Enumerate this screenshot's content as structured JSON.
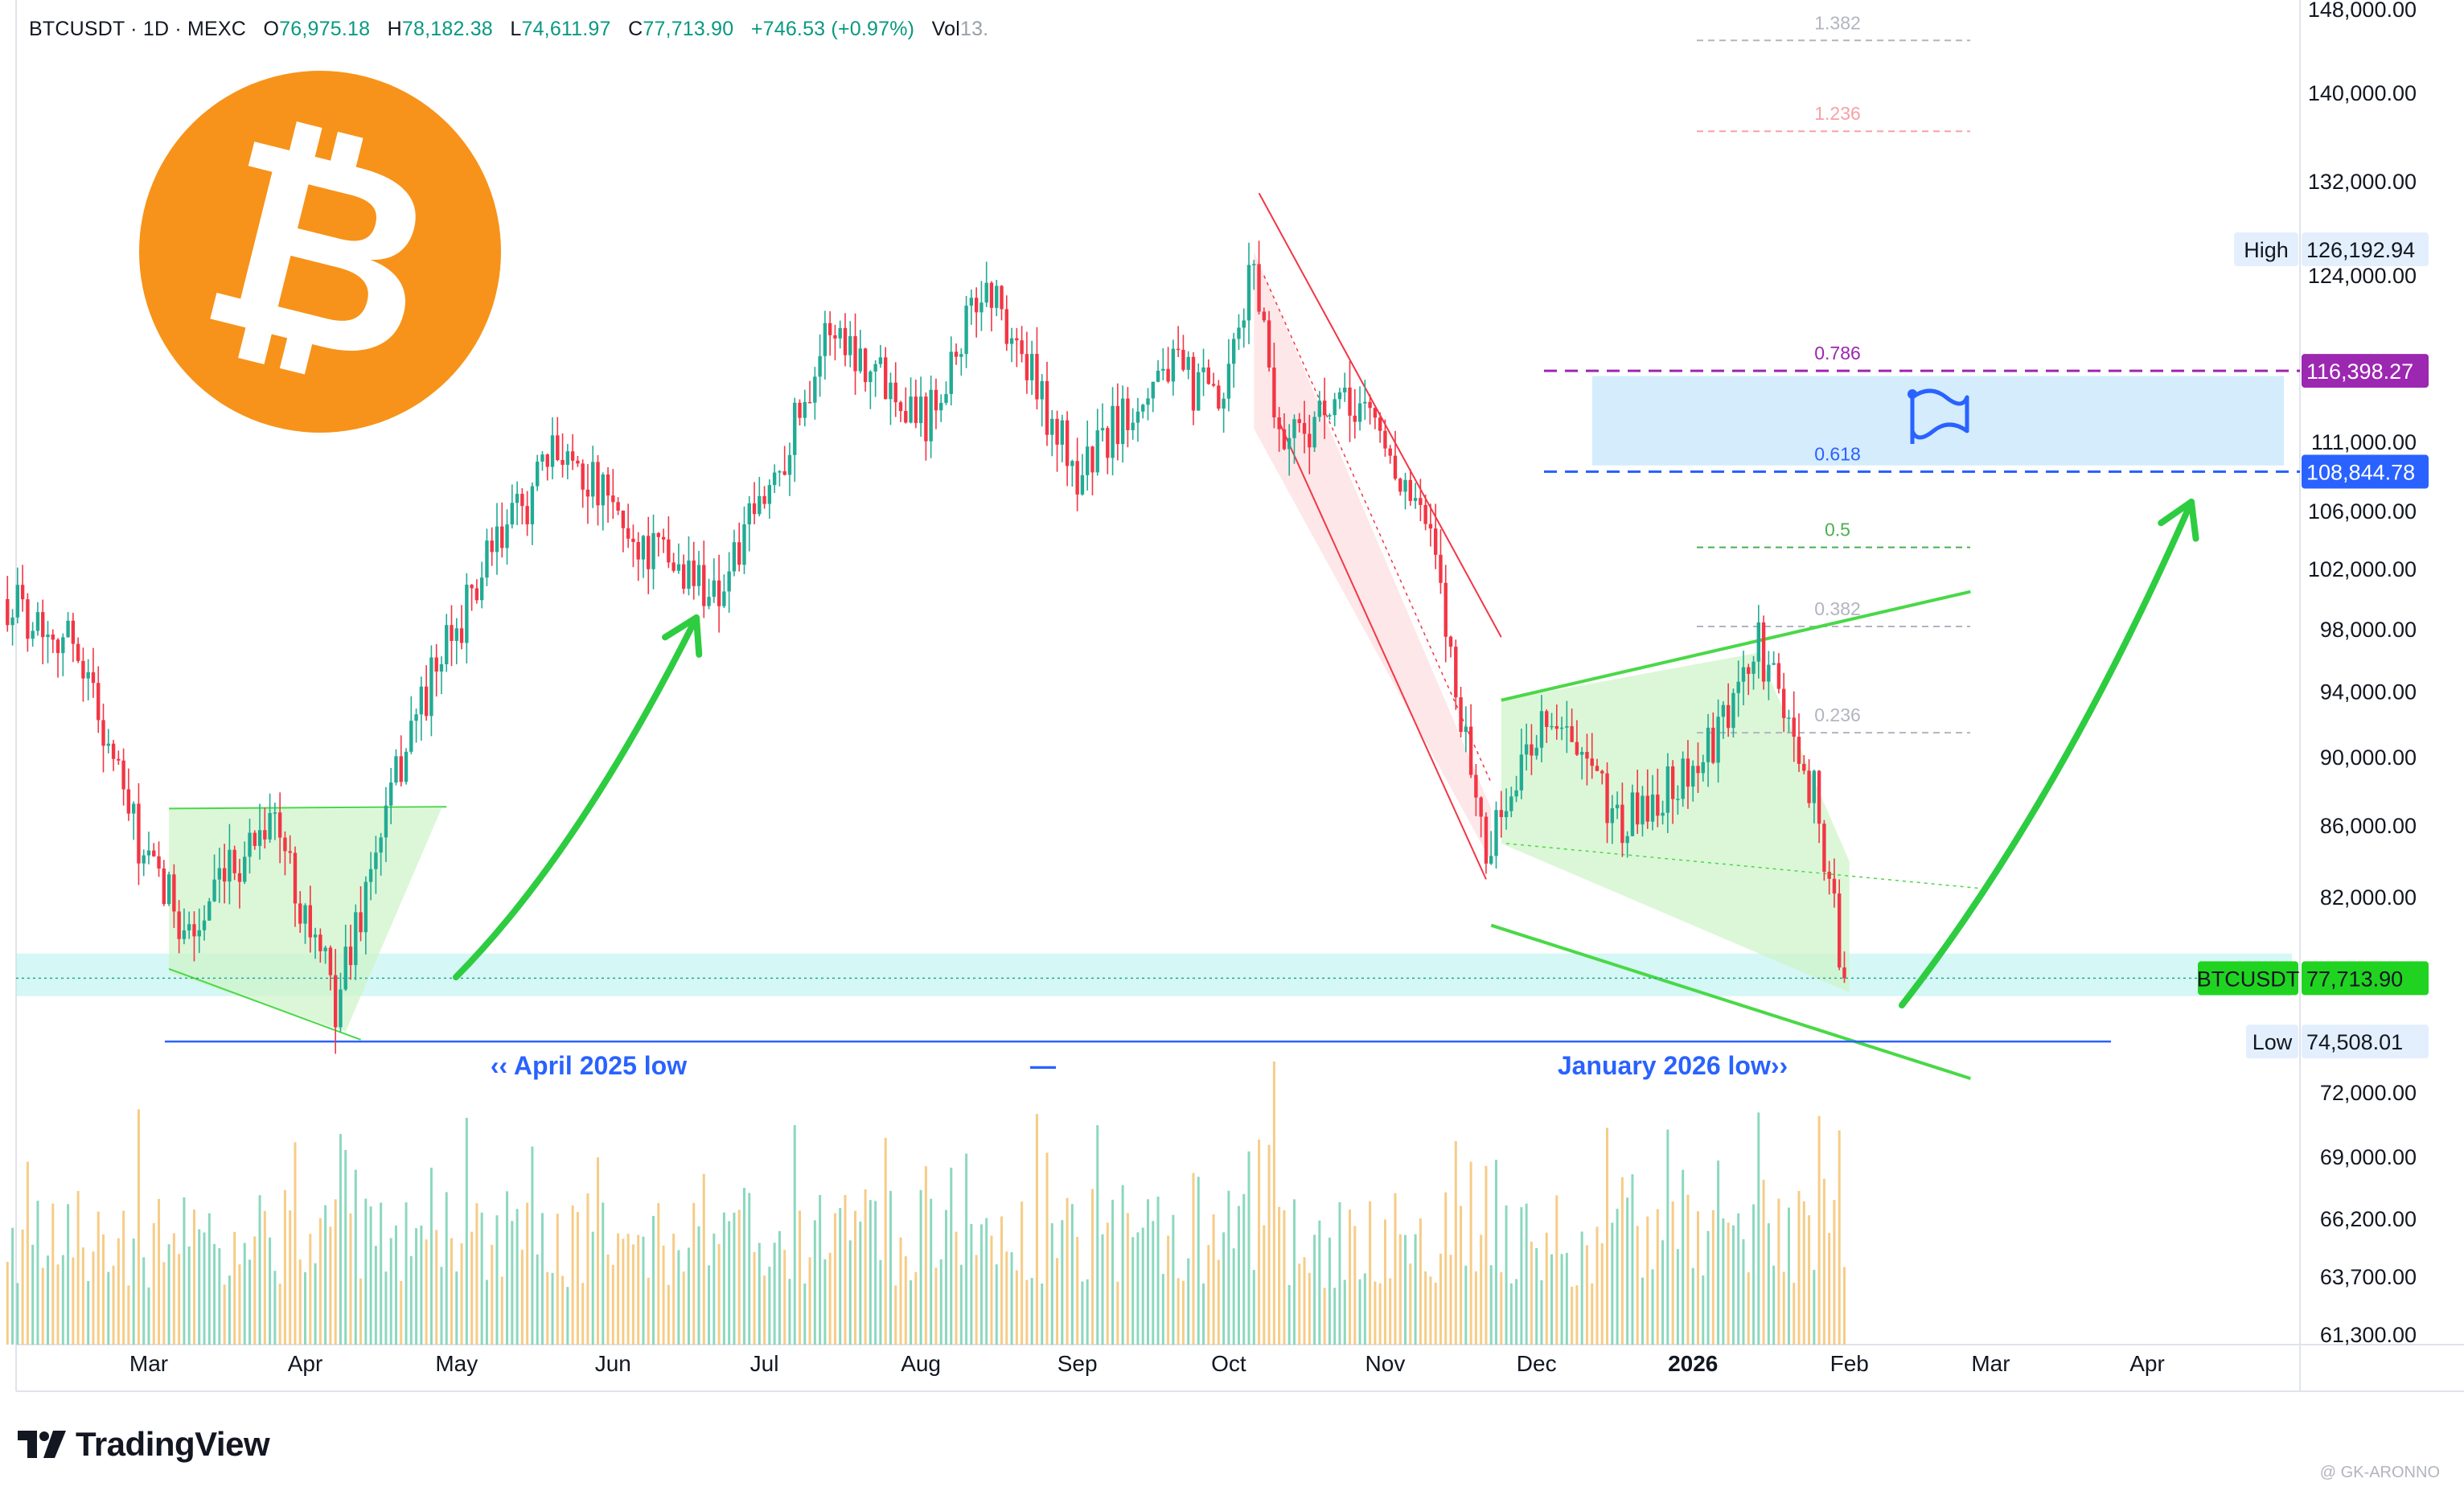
{
  "header": {
    "symbol": "BTCUSDT",
    "interval": "1D",
    "exchange": "MEXC",
    "open_label": "O",
    "open": "76,975.18",
    "high_label": "H",
    "high": "78,182.38",
    "low_label": "L",
    "low": "74,611.97",
    "close_label": "C",
    "close": "77,713.90",
    "change": "+746.53 (+0.97%)",
    "volume_label": "Vol",
    "volume": "13."
  },
  "brand": {
    "name": "TradingView"
  },
  "watermark": "@ GK-ARONNO",
  "colors": {
    "up": "#22ab94",
    "down": "#f23645",
    "accent_green": "#2ecc40",
    "blue_line": "#2962ff",
    "purple": "#9c27b0",
    "bitcoin_orange": "#f7931a"
  },
  "icons": {
    "logo": "bitcoin-logo-icon",
    "flag": "flag-icon"
  },
  "chart_data": {
    "type": "candlestick",
    "y_scale": "log",
    "ylim": [
      61300,
      148000
    ],
    "x_ticks": [
      {
        "label": "Mar",
        "date": "2025-03-01"
      },
      {
        "label": "Apr",
        "date": "2025-04-01"
      },
      {
        "label": "May",
        "date": "2025-05-01"
      },
      {
        "label": "Jun",
        "date": "2025-06-01"
      },
      {
        "label": "Jul",
        "date": "2025-07-01"
      },
      {
        "label": "Aug",
        "date": "2025-08-01"
      },
      {
        "label": "Sep",
        "date": "2025-09-01"
      },
      {
        "label": "Oct",
        "date": "2025-10-01"
      },
      {
        "label": "Nov",
        "date": "2025-11-01"
      },
      {
        "label": "Dec",
        "date": "2025-12-01"
      },
      {
        "label": "2026",
        "date": "2026-01-01",
        "bold": true
      },
      {
        "label": "Feb",
        "date": "2026-02-01"
      },
      {
        "label": "Mar",
        "date": "2026-03-01"
      },
      {
        "label": "Apr",
        "date": "2026-04-01"
      }
    ],
    "y_ticks": [
      {
        "label": "148,000.00",
        "value": 148000
      },
      {
        "label": "140,000.00",
        "value": 140000
      },
      {
        "label": "132,000.00",
        "value": 132000
      },
      {
        "label": "124,000.00",
        "value": 124000
      },
      {
        "label": "111,000.00",
        "value": 111000
      },
      {
        "label": "106,000.00",
        "value": 106000
      },
      {
        "label": "102,000.00",
        "value": 102000
      },
      {
        "label": "98,000.00",
        "value": 98000
      },
      {
        "label": "94,000.00",
        "value": 94000
      },
      {
        "label": "90,000.00",
        "value": 90000
      },
      {
        "label": "86,000.00",
        "value": 86000
      },
      {
        "label": "82,000.00",
        "value": 82000
      },
      {
        "label": "72,000.00",
        "value": 72000
      },
      {
        "label": "69,000.00",
        "value": 69000
      },
      {
        "label": "66,200.00",
        "value": 66200
      },
      {
        "label": "63,700.00",
        "value": 63700
      },
      {
        "label": "61,300.00",
        "value": 61300
      }
    ],
    "price_tags": [
      {
        "label": "High",
        "value_label": "126,192.94",
        "value": 126192.94,
        "style": "light"
      },
      {
        "label": "",
        "value_label": "116,398.27",
        "value": 116398.27,
        "style": "purple"
      },
      {
        "label": "",
        "value_label": "108,844.78",
        "value": 108844.78,
        "style": "blue"
      },
      {
        "label": "BTCUSDT",
        "value_label": "77,713.90",
        "value": 77713.9,
        "style": "green"
      },
      {
        "label": "Low",
        "value_label": "74,508.01",
        "value": 74508.01,
        "style": "light"
      }
    ],
    "fib_levels": [
      {
        "label": "1.382",
        "value": 145000,
        "color": "#b2b5be"
      },
      {
        "label": "1.236",
        "value": 136500,
        "color": "#f7a1a8"
      },
      {
        "label": "0.786",
        "value": 116398.27,
        "color": "#9c27b0"
      },
      {
        "label": "0.618",
        "value": 108844.78,
        "color": "#2962ff"
      },
      {
        "label": "0.5",
        "value": 103500,
        "color": "#4caf50"
      },
      {
        "label": "0.382",
        "value": 98200,
        "color": "#b2b5be"
      },
      {
        "label": "0.236",
        "value": 91500,
        "color": "#b2b5be"
      }
    ],
    "annotations": {
      "april_low": "‹‹ April 2025 low",
      "january_low": "January 2026 low››",
      "dash": "—"
    },
    "ohlc_anchors": [
      {
        "date": "2025-02-01",
        "close": 100000
      },
      {
        "date": "2025-02-15",
        "close": 97000
      },
      {
        "date": "2025-02-28",
        "close": 84000
      },
      {
        "date": "2025-03-10",
        "close": 80000
      },
      {
        "date": "2025-03-25",
        "close": 87000
      },
      {
        "date": "2025-04-07",
        "close": 76500
      },
      {
        "date": "2025-04-22",
        "close": 92000
      },
      {
        "date": "2025-05-08",
        "close": 103000
      },
      {
        "date": "2025-05-22",
        "close": 111000
      },
      {
        "date": "2025-06-05",
        "close": 104000
      },
      {
        "date": "2025-06-22",
        "close": 100500
      },
      {
        "date": "2025-07-03",
        "close": 108500
      },
      {
        "date": "2025-07-14",
        "close": 120000
      },
      {
        "date": "2025-08-02",
        "close": 113000
      },
      {
        "date": "2025-08-14",
        "close": 123500
      },
      {
        "date": "2025-09-01",
        "close": 108500
      },
      {
        "date": "2025-09-18",
        "close": 117000
      },
      {
        "date": "2025-09-30",
        "close": 113500
      },
      {
        "date": "2025-10-06",
        "close": 125500
      },
      {
        "date": "2025-10-11",
        "close": 111500
      },
      {
        "date": "2025-10-28",
        "close": 114000
      },
      {
        "date": "2025-11-10",
        "close": 104000
      },
      {
        "date": "2025-11-21",
        "close": 84500
      },
      {
        "date": "2025-12-03",
        "close": 93000
      },
      {
        "date": "2025-12-18",
        "close": 86000
      },
      {
        "date": "2026-01-05",
        "close": 90500
      },
      {
        "date": "2026-01-14",
        "close": 97000
      },
      {
        "date": "2026-01-25",
        "close": 88000
      },
      {
        "date": "2026-01-31",
        "close": 77713.9
      }
    ],
    "high": 126192.94,
    "low": 74508.01,
    "last": 77713.9
  }
}
